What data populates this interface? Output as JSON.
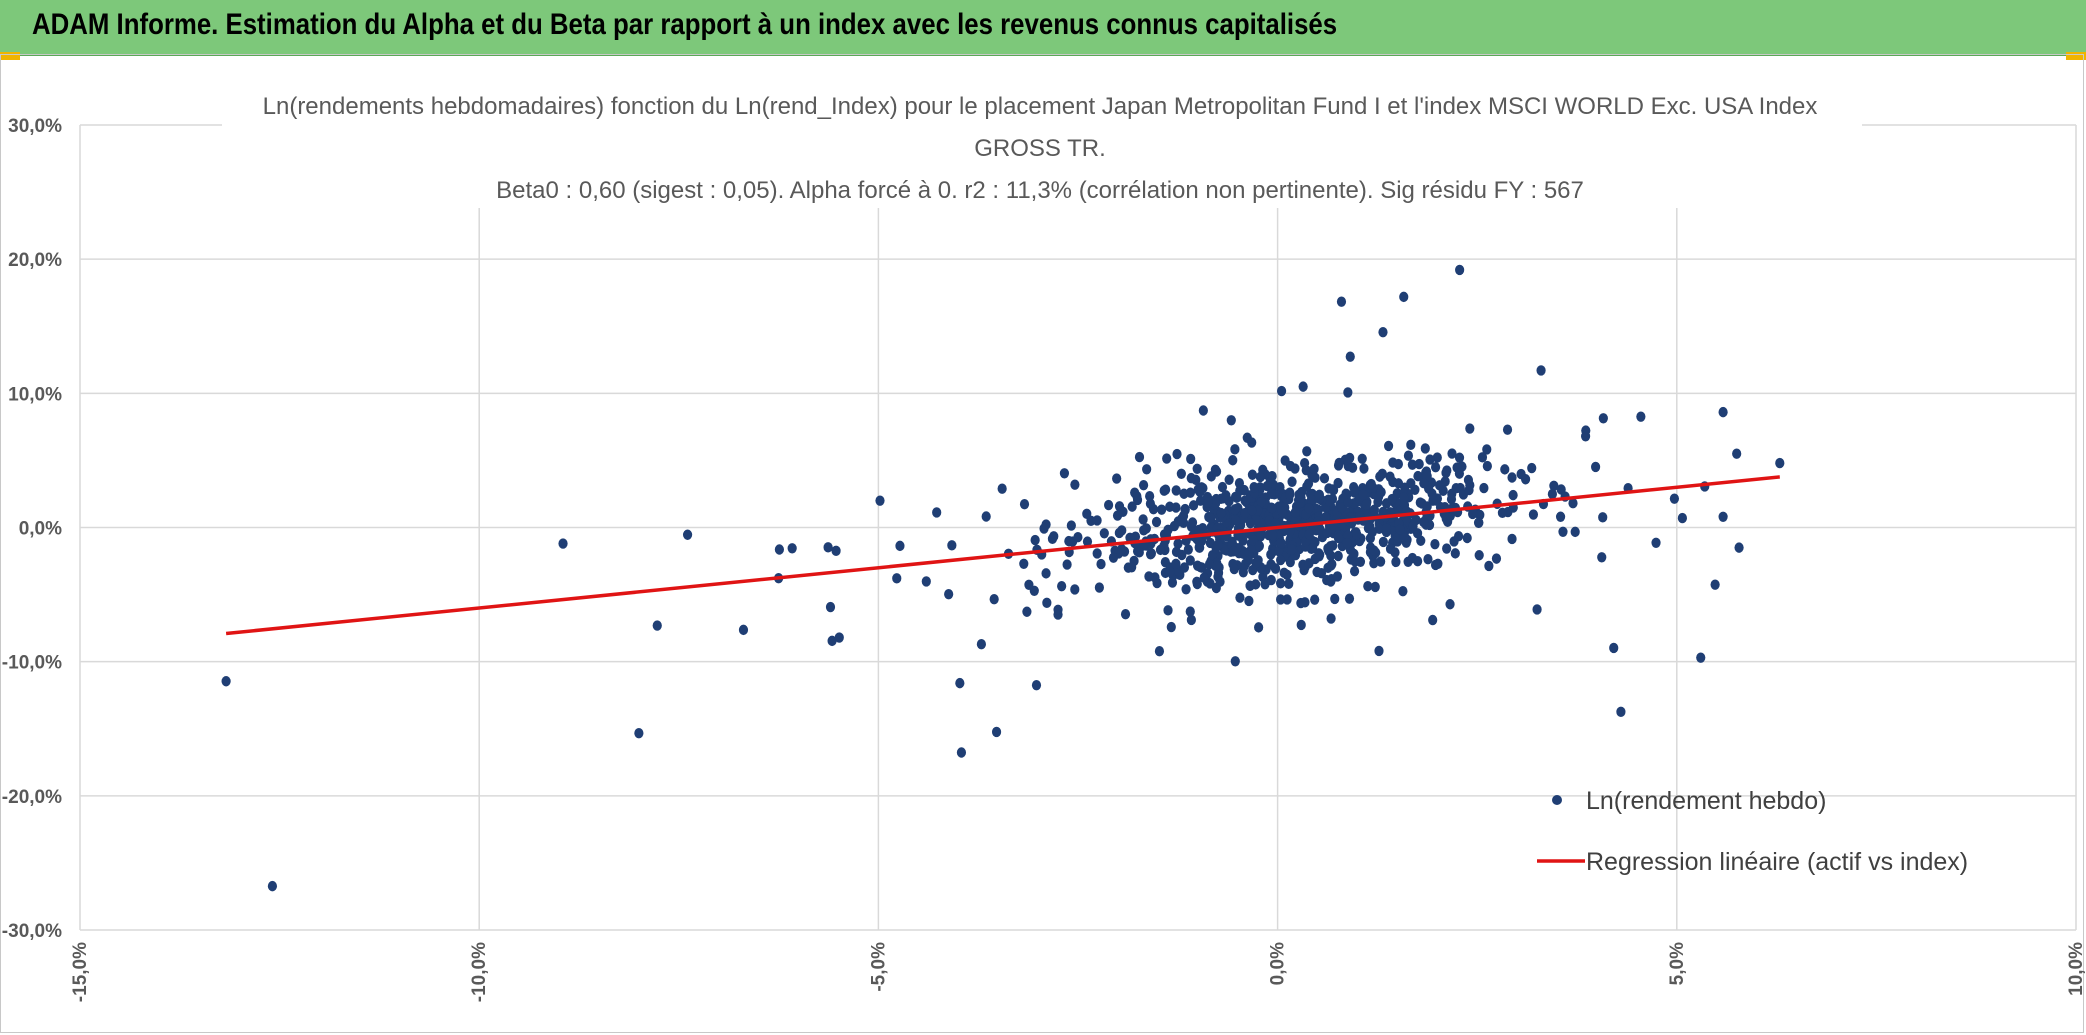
{
  "header": {
    "title": "ADAM Informe. Estimation du Alpha et du Beta par rapport à un index avec les revenus connus capitalisés"
  },
  "colors": {
    "header_bg": "#7dc87a",
    "points": "#1f3e74",
    "regression": "#e01414",
    "grid": "#d9d9d9"
  },
  "chart_data": {
    "type": "scatter",
    "title_lines": [
      "Ln(rendements hebdomadaires) fonction du Ln(rend_Index) pour le placement Japan Metropolitan Fund I et l'index MSCI WORLD Exc. USA Index",
      "GROSS TR.",
      "Beta0 : 0,60 (sigest : 0,05). Alpha forcé à 0. r2 : 11,3% (corrélation non pertinente). Sig résidu FY : 567"
    ],
    "xlim": [
      -0.15,
      0.1
    ],
    "ylim": [
      -0.3,
      0.3
    ],
    "x_ticks": [
      "-15,0%",
      "-10,0%",
      "-5,0%",
      "0,0%",
      "5,0%",
      "10,0%"
    ],
    "y_ticks": [
      "30,0%",
      "20,0%",
      "10,0%",
      "0,0%",
      "-10,0%",
      "-20,0%",
      "-30,0%"
    ],
    "grid": true,
    "legend_position": "bottom-right",
    "series": [
      {
        "name": "Ln(rendement hebdo)",
        "type": "scatter",
        "points": [
          [
            -0.1317,
            -0.1146
          ],
          [
            -0.1259,
            -0.2673
          ],
          [
            -0.0895,
            -0.012
          ],
          [
            -0.08,
            -0.1533
          ],
          [
            -0.0777,
            -0.0731
          ],
          [
            -0.0739,
            -0.0054
          ],
          [
            -0.0669,
            -0.0763
          ],
          [
            -0.0625,
            -0.0378
          ],
          [
            -0.0624,
            -0.0164
          ],
          [
            -0.0608,
            -0.0155
          ],
          [
            -0.0563,
            -0.0148
          ],
          [
            -0.056,
            -0.0593
          ],
          [
            -0.0558,
            -0.0845
          ],
          [
            -0.0553,
            -0.0174
          ],
          [
            -0.0549,
            -0.082
          ],
          [
            -0.0498,
            0.02
          ],
          [
            -0.0477,
            -0.0379
          ],
          [
            -0.0473,
            -0.0137
          ],
          [
            -0.044,
            -0.0402
          ],
          [
            -0.0427,
            0.0112
          ],
          [
            -0.0412,
            -0.0497
          ],
          [
            -0.0408,
            -0.0133
          ],
          [
            -0.0398,
            -0.116
          ],
          [
            -0.0396,
            -0.1677
          ],
          [
            -0.0371,
            -0.087
          ],
          [
            -0.0365,
            0.0082
          ],
          [
            -0.0355,
            -0.0534
          ],
          [
            -0.0352,
            -0.1524
          ],
          [
            -0.0345,
            0.0289
          ],
          [
            -0.0337,
            -0.0196
          ],
          [
            -0.0317,
            0.0174
          ],
          [
            -0.0314,
            -0.0628
          ],
          [
            -0.0302,
            -0.1175
          ],
          [
            -0.029,
            -0.0342
          ],
          [
            -0.0275,
            -0.0649
          ],
          [
            -0.0267,
            0.0404
          ],
          [
            -0.0254,
            -0.0462
          ],
          [
            -0.0239,
            0.0102
          ],
          [
            -0.0226,
            -0.0193
          ],
          [
            -0.0198,
            0.0158
          ],
          [
            -0.0187,
            -0.0299
          ],
          [
            -0.0164,
            0.0434
          ],
          [
            -0.0151,
            -0.0414
          ],
          [
            -0.0148,
            -0.0922
          ],
          [
            -0.0127,
            0.0276
          ],
          [
            -0.0108,
            -0.0689
          ],
          [
            -0.0093,
            0.0872
          ],
          [
            -0.0083,
            0.0381
          ],
          [
            -0.0058,
            0.0799
          ],
          [
            -0.0053,
            -0.0997
          ],
          [
            -0.0038,
            0.0669
          ],
          [
            -0.0015,
            0.0223
          ],
          [
            0.0005,
            0.1017
          ],
          [
            0.0032,
            0.105
          ],
          [
            0.0047,
            0.0371
          ],
          [
            0.0067,
            -0.0679
          ],
          [
            0.008,
            0.1683
          ],
          [
            0.0088,
            0.1007
          ],
          [
            0.0091,
            0.1273
          ],
          [
            0.0106,
            0.0512
          ],
          [
            0.0113,
            0.0279
          ],
          [
            0.0127,
            -0.092
          ],
          [
            0.0132,
            0.1456
          ],
          [
            0.0139,
            0.0608
          ],
          [
            0.0158,
            0.1719
          ],
          [
            0.0172,
            0.0281
          ],
          [
            0.0185,
            0.0589
          ],
          [
            0.02,
            0.0521
          ],
          [
            0.0216,
            -0.0572
          ],
          [
            0.0228,
            0.192
          ],
          [
            0.0239,
            0.0354
          ],
          [
            0.0262,
            0.0582
          ],
          [
            0.0275,
            0.0177
          ],
          [
            0.0288,
            0.0729
          ],
          [
            0.0305,
            0.0398
          ],
          [
            0.0325,
            -0.0611
          ],
          [
            0.033,
            0.1171
          ],
          [
            0.0346,
            0.0311
          ],
          [
            0.037,
            0.0181
          ],
          [
            0.0386,
            0.0722
          ],
          [
            0.0406,
            -0.0222
          ],
          [
            0.0408,
            0.0814
          ],
          [
            0.0421,
            -0.0898
          ],
          [
            0.043,
            -0.1374
          ],
          [
            0.0439,
            0.0293
          ],
          [
            0.0455,
            0.0826
          ],
          [
            0.0474,
            -0.0114
          ],
          [
            0.0497,
            0.0215
          ],
          [
            0.0535,
            0.0306
          ],
          [
            0.0548,
            -0.0426
          ],
          [
            0.0558,
            0.008
          ],
          [
            0.0578,
            -0.015
          ],
          [
            0.0507,
            0.007
          ],
          [
            0.053,
            -0.097
          ],
          [
            0.0558,
            0.086
          ],
          [
            0.0575,
            0.055
          ],
          [
            0.0629,
            0.048
          ]
        ]
      },
      {
        "name": "Regression linéaire (actif vs index)",
        "type": "line",
        "points": [
          [
            -0.1317,
            -0.079
          ],
          [
            0.0629,
            0.0377
          ]
        ]
      }
    ]
  }
}
